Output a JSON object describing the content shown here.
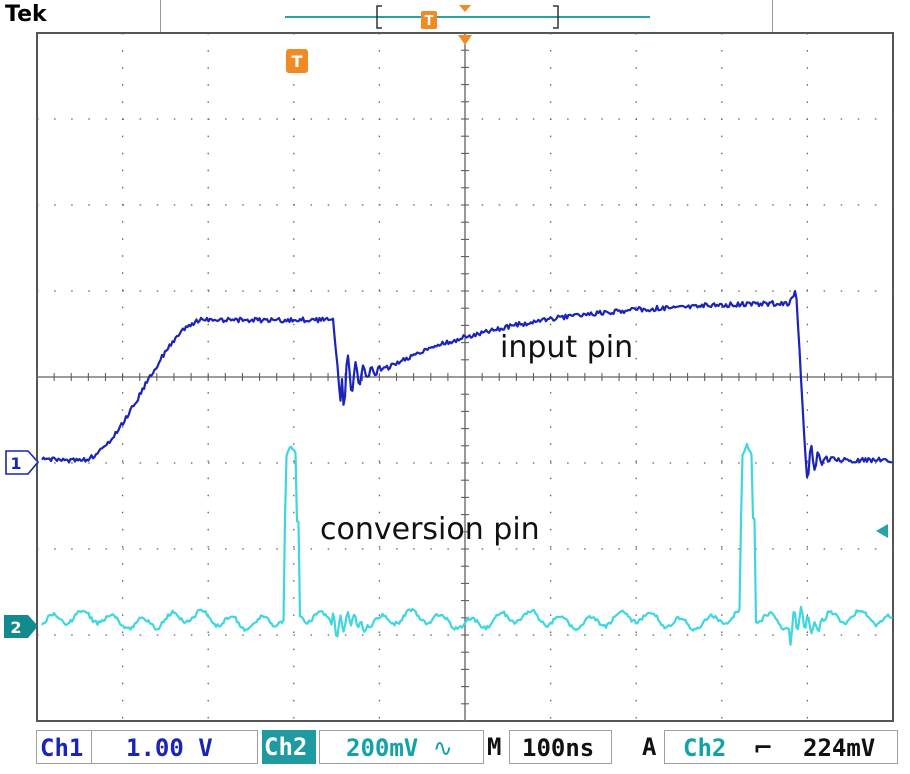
{
  "brand": "Tek",
  "markers": {
    "trigger_glyph": "T",
    "ch1_ref": "1",
    "ch2_ref": "2"
  },
  "annotations": {
    "input": "input pin",
    "conversion": "conversion pin"
  },
  "status": {
    "ch1_label": "Ch1",
    "ch1_scale": "1.00 V",
    "ch2_label": "Ch2",
    "ch2_scale": "200mV",
    "ch2_coupling_icon": "ac-coupling-icon",
    "timebase_label": "M",
    "timebase_value": "100ns",
    "acq_label": "A",
    "trig_source": "Ch2",
    "trig_slope_icon": "falling-edge-icon",
    "trig_level": "224mV"
  },
  "colors": {
    "ch1": "#1a24b8",
    "ch2": "#3ed6e0",
    "trigger": "#f08a24",
    "grid": "#606060",
    "ch2_badge": "#138a8f"
  }
}
